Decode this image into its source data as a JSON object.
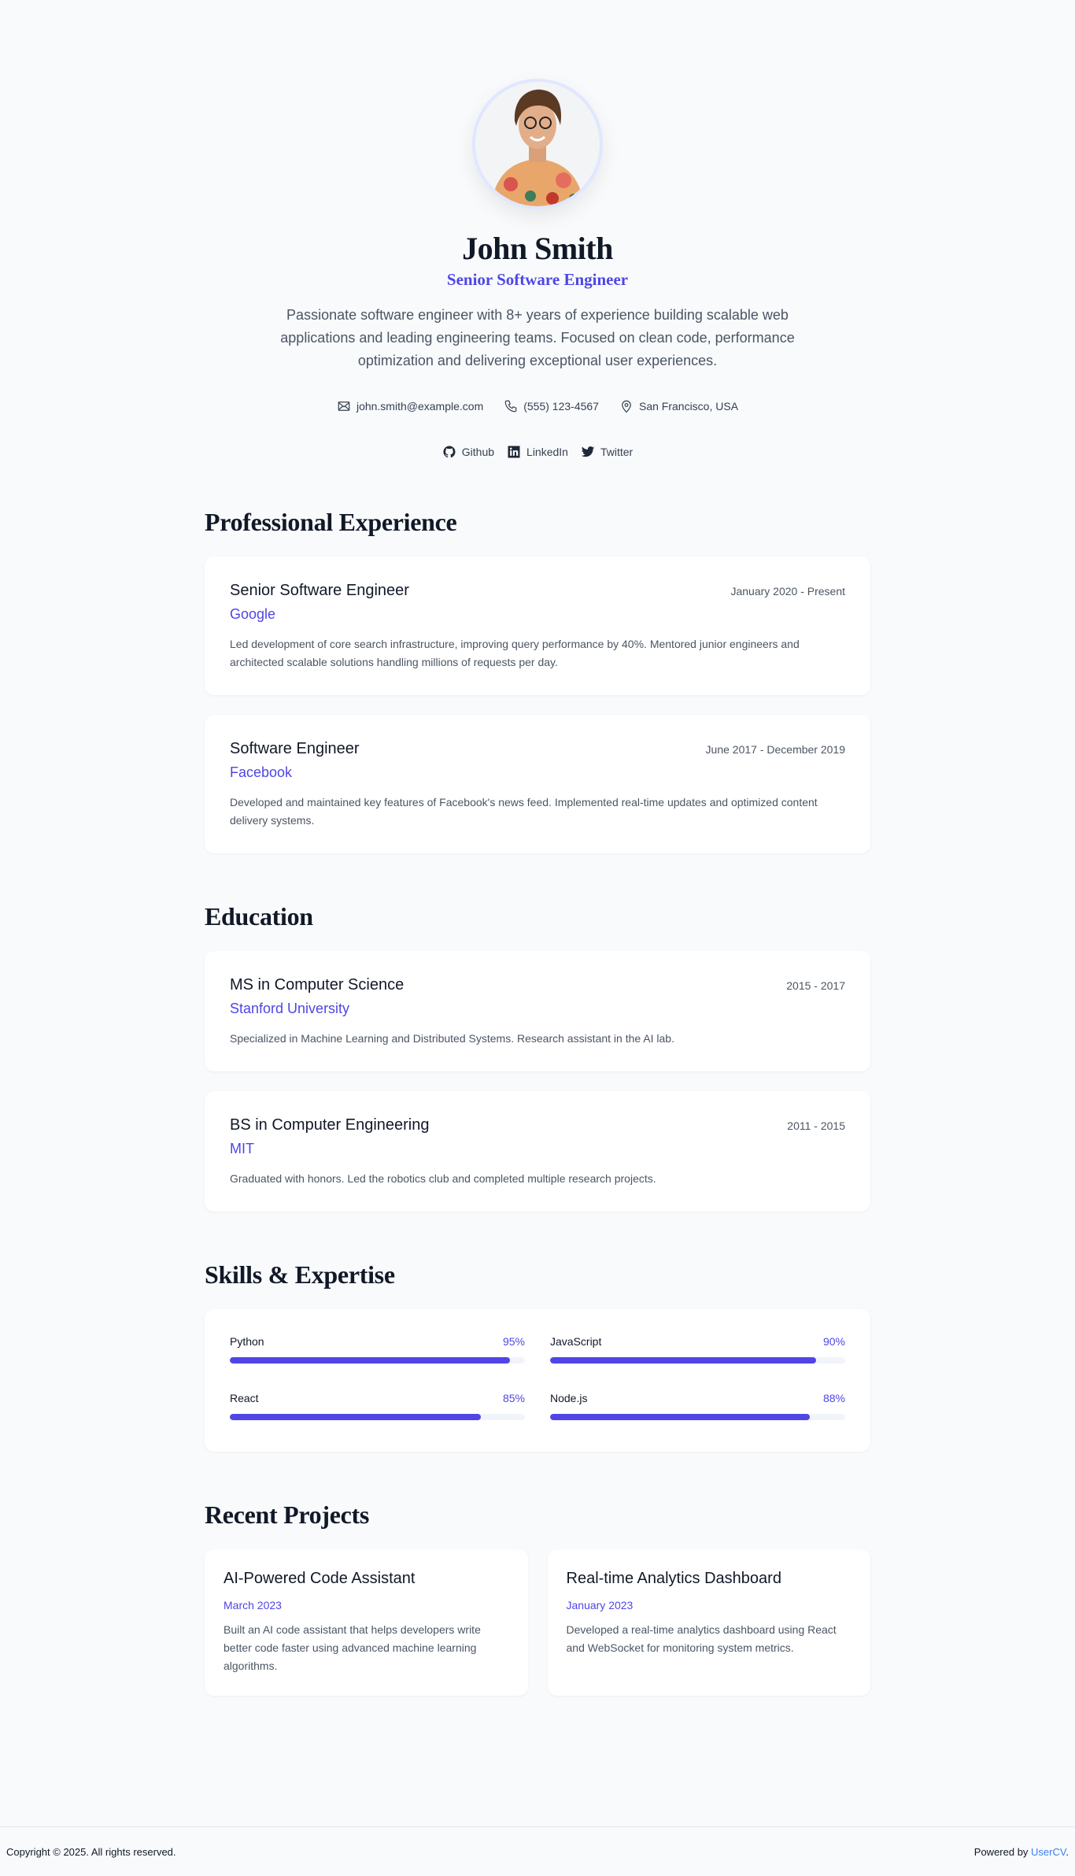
{
  "profile": {
    "name": "John Smith",
    "title": "Senior Software Engineer",
    "bio": "Passionate software engineer with 8+ years of experience building scalable web applications and leading engineering teams. Focused on clean code, performance optimization and delivering exceptional user experiences.",
    "contacts": {
      "email": "john.smith@example.com",
      "phone": "(555) 123-4567",
      "location": "San Francisco, USA"
    },
    "socials": [
      {
        "label": "Github",
        "icon": "github-icon"
      },
      {
        "label": "LinkedIn",
        "icon": "linkedin-icon"
      },
      {
        "label": "Twitter",
        "icon": "twitter-icon"
      }
    ]
  },
  "experience": {
    "heading": "Professional Experience",
    "items": [
      {
        "role": "Senior Software Engineer",
        "company": "Google",
        "dates": "January 2020 - Present",
        "desc": "Led development of core search infrastructure, improving query performance by 40%. Mentored junior engineers and architected scalable solutions handling millions of requests per day."
      },
      {
        "role": "Software Engineer",
        "company": "Facebook",
        "dates": "June 2017 - December 2019",
        "desc": "Developed and maintained key features of Facebook's news feed. Implemented real-time updates and optimized content delivery systems."
      }
    ]
  },
  "education": {
    "heading": "Education",
    "items": [
      {
        "degree": "MS in Computer Science",
        "school": "Stanford University",
        "dates": "2015 - 2017",
        "desc": "Specialized in Machine Learning and Distributed Systems. Research assistant in the AI lab."
      },
      {
        "degree": "BS in Computer Engineering",
        "school": "MIT",
        "dates": "2011 - 2015",
        "desc": "Graduated with honors. Led the robotics club and completed multiple research projects."
      }
    ]
  },
  "skills": {
    "heading": "Skills & Expertise",
    "items": [
      {
        "name": "Python",
        "level": 95,
        "label": "95%"
      },
      {
        "name": "JavaScript",
        "level": 90,
        "label": "90%"
      },
      {
        "name": "React",
        "level": 85,
        "label": "85%"
      },
      {
        "name": "Node.js",
        "level": 88,
        "label": "88%"
      }
    ]
  },
  "projects": {
    "heading": "Recent Projects",
    "items": [
      {
        "title": "AI-Powered Code Assistant",
        "date": "March 2023",
        "desc": "Built an AI code assistant that helps developers write better code faster using advanced machine learning algorithms."
      },
      {
        "title": "Real-time Analytics Dashboard",
        "date": "January 2023",
        "desc": "Developed a real-time analytics dashboard using React and WebSocket for monitoring system metrics."
      }
    ]
  },
  "footer": {
    "copyright": "Copyright © 2025. All rights reserved.",
    "powered_prefix": "Powered by ",
    "powered_link": "UserCV",
    "powered_suffix": "."
  },
  "colors": {
    "accent": "#4f46e5",
    "background": "#f8fafc",
    "link": "#3b82f6"
  }
}
